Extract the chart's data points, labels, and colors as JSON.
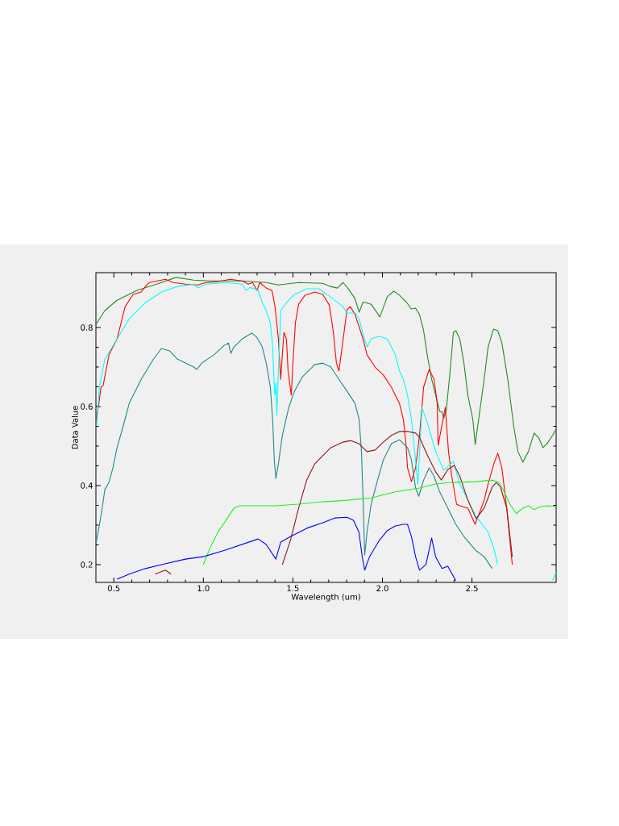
{
  "chart_data": {
    "type": "line",
    "xlabel": "Wavelength (um)",
    "ylabel": "Data Value",
    "xlim": [
      0.4,
      2.97
    ],
    "ylim": [
      0.155,
      0.939
    ],
    "xticks": [
      0.5,
      {
        "value": 1.0,
        "label": "1.0"
      },
      1.5,
      {
        "value": 2.0,
        "label": "2.0"
      },
      2.5
    ],
    "yticks": [
      0.2,
      0.4,
      0.6,
      0.8
    ],
    "marker": "none",
    "series": [
      {
        "color": "#228b22",
        "x": [
          0.4,
          0.45,
          0.518,
          0.63,
          0.766,
          0.847,
          0.946,
          1.036,
          1.216,
          1.351,
          1.419,
          1.532,
          1.667,
          1.71,
          1.748,
          1.78,
          1.81,
          1.847,
          1.87,
          1.892,
          1.937,
          1.986,
          2.027,
          2.063,
          2.095,
          2.14,
          2.16,
          2.185,
          2.207,
          2.23,
          2.25,
          2.275,
          2.297,
          2.32,
          2.333,
          2.342,
          2.356,
          2.378,
          2.396,
          2.41,
          2.432,
          2.455,
          2.477,
          2.505,
          2.518,
          2.568,
          2.59,
          2.62,
          2.644,
          2.667,
          2.7,
          2.734,
          2.757,
          2.784,
          2.815,
          2.847,
          2.874,
          2.896,
          2.919,
          2.95,
          2.97
        ],
        "values": [
          0.808,
          0.843,
          0.869,
          0.894,
          0.914,
          0.927,
          0.92,
          0.918,
          0.918,
          0.914,
          0.908,
          0.914,
          0.912,
          0.904,
          0.9,
          0.914,
          0.898,
          0.873,
          0.839,
          0.865,
          0.859,
          0.827,
          0.878,
          0.892,
          0.882,
          0.861,
          0.847,
          0.849,
          0.833,
          0.792,
          0.731,
          0.669,
          0.629,
          0.588,
          0.586,
          0.571,
          0.588,
          0.69,
          0.788,
          0.792,
          0.771,
          0.71,
          0.629,
          0.567,
          0.504,
          0.669,
          0.751,
          0.796,
          0.792,
          0.761,
          0.669,
          0.547,
          0.486,
          0.459,
          0.486,
          0.533,
          0.52,
          0.496,
          0.506,
          0.527,
          0.543
        ]
      },
      {
        "color": "#ff0000",
        "x": [
          0.4,
          0.414,
          0.428,
          0.44,
          0.473,
          0.518,
          0.563,
          0.608,
          0.653,
          0.676,
          0.698,
          0.743,
          0.788,
          0.833,
          0.9,
          0.968,
          1.014,
          1.08,
          1.149,
          1.216,
          1.252,
          1.275,
          1.3,
          1.315,
          1.351,
          1.383,
          1.4,
          1.419,
          1.432,
          1.441,
          1.45,
          1.464,
          1.473,
          1.491,
          1.5,
          1.514,
          1.532,
          1.568,
          1.622,
          1.667,
          1.703,
          1.725,
          1.743,
          1.757,
          1.775,
          1.802,
          1.82,
          1.847,
          1.892,
          1.914,
          1.959,
          2.005,
          2.05,
          2.095,
          2.117,
          2.131,
          2.14,
          2.162,
          2.185,
          2.207,
          2.23,
          2.261,
          2.288,
          2.306,
          2.311,
          2.351,
          2.369,
          2.387,
          2.414,
          2.432,
          2.477,
          2.518,
          2.568,
          2.59,
          2.622,
          2.644,
          2.667,
          2.694,
          2.725
        ],
        "values": [
          0.567,
          0.598,
          0.649,
          0.653,
          0.731,
          0.771,
          0.853,
          0.884,
          0.89,
          0.904,
          0.914,
          0.918,
          0.922,
          0.914,
          0.91,
          0.908,
          0.914,
          0.916,
          0.922,
          0.918,
          0.91,
          0.914,
          0.894,
          0.914,
          0.9,
          0.894,
          0.853,
          0.771,
          0.669,
          0.731,
          0.788,
          0.771,
          0.69,
          0.629,
          0.71,
          0.812,
          0.859,
          0.882,
          0.89,
          0.884,
          0.857,
          0.792,
          0.71,
          0.69,
          0.751,
          0.845,
          0.853,
          0.833,
          0.771,
          0.731,
          0.7,
          0.68,
          0.649,
          0.608,
          0.567,
          0.506,
          0.445,
          0.41,
          0.445,
          0.527,
          0.649,
          0.694,
          0.669,
          0.608,
          0.502,
          0.598,
          0.486,
          0.424,
          0.353,
          0.349,
          0.343,
          0.302,
          0.363,
          0.404,
          0.455,
          0.482,
          0.445,
          0.343,
          0.2
        ]
      },
      {
        "color": "#00ffff",
        "x": [
          0.405,
          0.419,
          0.45,
          0.518,
          0.586,
          0.676,
          0.766,
          0.856,
          0.946,
          0.968,
          1.014,
          1.126,
          1.216,
          1.239,
          1.261,
          1.306,
          1.329,
          1.351,
          1.374,
          1.387,
          1.396,
          1.4,
          1.405,
          1.41,
          1.419,
          1.432,
          1.464,
          1.509,
          1.577,
          1.645,
          1.69,
          1.78,
          1.802,
          1.847,
          1.87,
          1.892,
          1.914,
          1.937,
          1.982,
          2.027,
          2.072,
          2.095,
          2.117,
          2.14,
          2.162,
          2.18,
          2.198,
          2.221,
          2.252,
          2.297,
          2.342,
          2.396,
          2.432,
          2.477,
          2.523,
          2.59,
          2.622,
          2.644,
          2.8,
          2.95,
          2.97
        ],
        "values": [
          0.553,
          0.649,
          0.72,
          0.771,
          0.822,
          0.863,
          0.89,
          0.904,
          0.91,
          0.9,
          0.91,
          0.914,
          0.91,
          0.894,
          0.902,
          0.894,
          0.863,
          0.843,
          0.812,
          0.751,
          0.649,
          0.629,
          0.66,
          0.578,
          0.69,
          0.843,
          0.863,
          0.884,
          0.898,
          0.898,
          0.884,
          0.853,
          0.837,
          0.837,
          0.822,
          0.782,
          0.751,
          0.771,
          0.778,
          0.771,
          0.731,
          0.69,
          0.669,
          0.629,
          0.567,
          0.486,
          0.404,
          0.598,
          0.557,
          0.486,
          0.439,
          0.461,
          0.404,
          0.363,
          0.322,
          0.282,
          0.241,
          0.2,
          null,
          0.16,
          0.18
        ]
      },
      {
        "color": "#20898b",
        "x": [
          0.4,
          0.428,
          0.45,
          0.473,
          0.495,
          0.518,
          0.55,
          0.586,
          0.653,
          0.721,
          0.766,
          0.811,
          0.856,
          0.901,
          0.946,
          0.964,
          0.991,
          1.059,
          1.117,
          1.14,
          1.153,
          1.171,
          1.216,
          1.27,
          1.297,
          1.329,
          1.351,
          1.374,
          1.387,
          1.396,
          1.405,
          1.419,
          1.441,
          1.477,
          1.509,
          1.554,
          1.622,
          1.667,
          1.712,
          1.757,
          1.802,
          1.847,
          1.87,
          1.883,
          1.892,
          1.901,
          1.914,
          1.937,
          1.973,
          2.005,
          2.05,
          2.095,
          2.117,
          2.14,
          2.162,
          2.185,
          2.203,
          2.23,
          2.261,
          2.288,
          2.32,
          2.365,
          2.41,
          2.455,
          2.523,
          2.568,
          2.613
        ],
        "values": [
          0.251,
          0.322,
          0.39,
          0.408,
          0.445,
          0.496,
          0.547,
          0.608,
          0.669,
          0.72,
          0.747,
          0.741,
          0.72,
          0.71,
          0.7,
          0.694,
          0.71,
          0.731,
          0.755,
          0.761,
          0.735,
          0.751,
          0.771,
          0.786,
          0.776,
          0.751,
          0.71,
          0.649,
          0.567,
          0.465,
          0.418,
          0.455,
          0.527,
          0.598,
          0.639,
          0.676,
          0.706,
          0.71,
          0.7,
          0.669,
          0.639,
          0.608,
          0.567,
          0.486,
          0.363,
          0.224,
          0.282,
          0.353,
          0.414,
          0.465,
          0.506,
          0.516,
          0.506,
          0.496,
          0.465,
          0.394,
          0.373,
          0.414,
          0.445,
          0.424,
          0.384,
          0.343,
          0.302,
          0.271,
          0.235,
          0.22,
          0.19
        ]
      },
      {
        "color": "#8b1a1a",
        "x": [
          0.73,
          0.788,
          0.82,
          1.1,
          1.441,
          1.486,
          1.532,
          1.577,
          1.622,
          1.667,
          1.712,
          1.78,
          1.824,
          1.869,
          1.914,
          1.959,
          2.005,
          2.05,
          2.095,
          2.14,
          2.185,
          2.207,
          2.252,
          2.297,
          2.329,
          2.365,
          2.401,
          2.432,
          2.477,
          2.523,
          2.568,
          2.613,
          2.635,
          2.658,
          2.694,
          2.725
        ],
        "values": [
          0.176,
          0.186,
          0.176,
          null,
          0.2,
          0.261,
          0.343,
          0.414,
          0.455,
          0.476,
          0.496,
          0.51,
          0.514,
          0.506,
          0.486,
          0.49,
          0.51,
          0.527,
          0.537,
          0.537,
          0.533,
          0.522,
          0.476,
          0.435,
          0.414,
          0.441,
          0.451,
          0.424,
          0.363,
          0.316,
          0.343,
          0.396,
          0.408,
          0.398,
          0.343,
          0.22
        ]
      },
      {
        "color": "#22ee22",
        "x": [
          1.0,
          1.036,
          1.081,
          1.126,
          1.171,
          1.203,
          1.261,
          1.396,
          1.532,
          1.667,
          1.802,
          1.937,
          2.072,
          2.207,
          2.297,
          2.387,
          2.523,
          2.613,
          2.649,
          2.68,
          2.712,
          2.748,
          2.784,
          2.815,
          2.847,
          2.883,
          2.928,
          2.97
        ],
        "values": [
          0.2,
          0.241,
          0.282,
          0.312,
          0.343,
          0.349,
          0.349,
          0.349,
          0.353,
          0.359,
          0.363,
          0.369,
          0.384,
          0.394,
          0.404,
          0.408,
          0.41,
          0.414,
          0.408,
          0.384,
          0.353,
          0.329,
          0.343,
          0.349,
          0.339,
          0.347,
          0.349,
          0.347
        ]
      },
      {
        "color": "#0000ff",
        "x": [
          0.518,
          0.586,
          0.676,
          0.766,
          0.9,
          1.0,
          1.126,
          1.216,
          1.306,
          1.351,
          1.405,
          1.432,
          1.486,
          1.577,
          1.667,
          1.734,
          1.802,
          1.838,
          1.869,
          1.887,
          1.901,
          1.928,
          1.982,
          2.027,
          2.072,
          2.117,
          2.14,
          2.162,
          2.185,
          2.207,
          2.243,
          2.275,
          2.297,
          2.333,
          2.365,
          2.41
        ],
        "values": [
          0.163,
          0.176,
          0.19,
          0.2,
          0.214,
          0.22,
          0.237,
          0.251,
          0.265,
          0.251,
          0.214,
          0.257,
          0.271,
          0.292,
          0.306,
          0.318,
          0.32,
          0.312,
          0.282,
          0.22,
          0.186,
          0.22,
          0.261,
          0.286,
          0.298,
          0.302,
          0.302,
          0.271,
          0.22,
          0.186,
          0.2,
          0.267,
          0.22,
          0.19,
          0.196,
          0.159
        ]
      }
    ]
  }
}
